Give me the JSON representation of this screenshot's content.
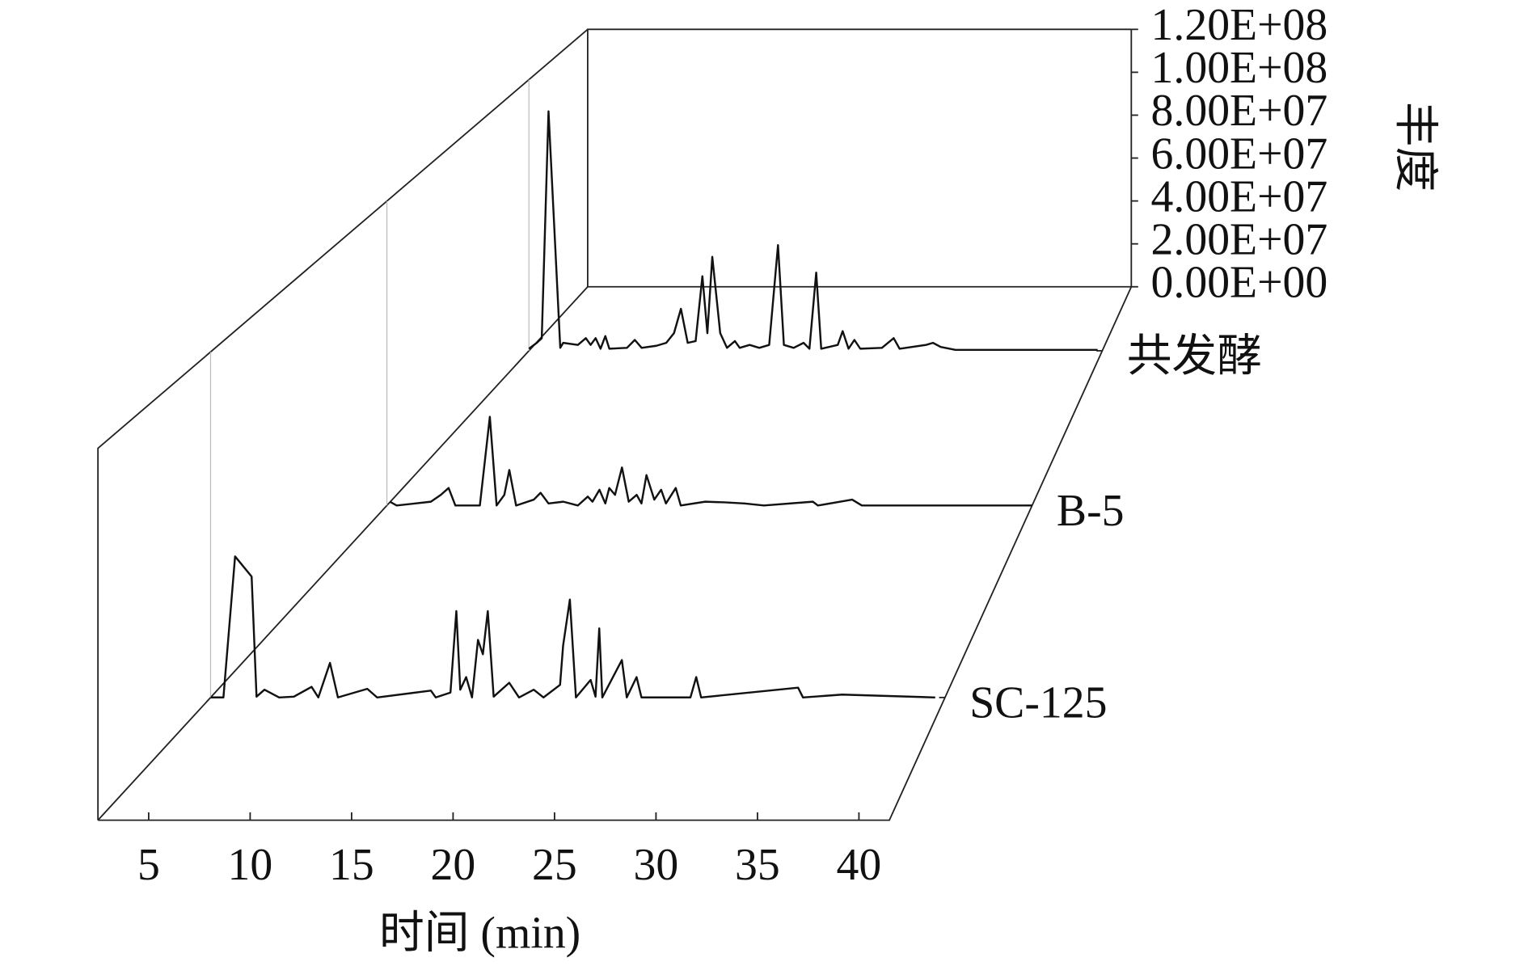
{
  "chart_data": {
    "type": "waterfall",
    "xlabel": "时间 (min)",
    "ylabel": "丰度",
    "xlim": [
      2.5,
      41.5
    ],
    "xticks": [
      5,
      10,
      15,
      20,
      25,
      30,
      35,
      40
    ],
    "ylim": [
      0,
      120000000
    ],
    "yticks": [
      {
        "value": 0,
        "label": "0.00E+00"
      },
      {
        "value": 20000000,
        "label": "2.00E+07"
      },
      {
        "value": 40000000,
        "label": "4.00E+07"
      },
      {
        "value": 60000000,
        "label": "6.00E+07"
      },
      {
        "value": 80000000,
        "label": "8.00E+07"
      },
      {
        "value": 100000000,
        "label": "1.00E+08"
      },
      {
        "value": 120000000,
        "label": "1.20E+08"
      }
    ],
    "series": [
      {
        "name": "SC-125",
        "color": "#111111",
        "x": [
          2.5,
          3.18,
          3.8,
          4.68,
          4.94,
          5.36,
          6.14,
          6.92,
          7.86,
          8.22,
          8.84,
          9.26,
          10.82,
          11.34,
          14.2,
          14.46,
          15.24,
          15.55,
          15.76,
          16.07,
          16.38,
          16.7,
          16.96,
          17.22,
          17.53,
          18.36,
          18.88,
          19.66,
          20.18,
          21.06,
          21.22,
          21.58,
          21.9,
          22.68,
          22.94,
          23.14,
          23.3,
          24.34,
          24.6,
          25.12,
          25.38,
          27.98,
          28.29,
          28.55,
          33.7,
          33.96,
          36.04,
          40.98
        ],
        "values": [
          0,
          0,
          49000000,
          42000000,
          300000,
          2700000,
          0,
          300000,
          3700000,
          0,
          12000000,
          0,
          3000000,
          0,
          2400000,
          0,
          1700000,
          30000000,
          2700000,
          7100000,
          0,
          20000000,
          15000000,
          30000000,
          300000,
          5100000,
          0,
          2700000,
          0,
          4400000,
          18000000,
          34000000,
          0,
          6100000,
          300000,
          24000000,
          0,
          13000000,
          0,
          7100000,
          0,
          0,
          7100000,
          0,
          3400000,
          0,
          1000000,
          0
        ]
      },
      {
        "name": "B-5",
        "color": "#111111",
        "x": [
          2.68,
          3.09,
          5.16,
          5.76,
          6.23,
          6.64,
          8.12,
          8.72,
          9.13,
          9.6,
          9.9,
          10.31,
          11.38,
          11.79,
          12.27,
          13.16,
          14.04,
          14.64,
          14.93,
          15.35,
          15.7,
          15.94,
          16.29,
          16.71,
          17.12,
          17.6,
          17.89,
          18.19,
          18.66,
          19.08,
          19.37,
          19.96,
          20.26,
          21.74,
          22.92,
          24.11,
          25.29,
          28.25,
          28.55,
          30.62,
          31.21,
          41.5
        ],
        "values": [
          1500000,
          0,
          1500000,
          4200000,
          6900000,
          0,
          0,
          35000000,
          0,
          4200000,
          14000000,
          0,
          2300000,
          5000000,
          800000,
          1500000,
          0,
          3500000,
          1500000,
          6200000,
          800000,
          6900000,
          4200000,
          15000000,
          1500000,
          4200000,
          800000,
          12000000,
          2300000,
          6200000,
          800000,
          6900000,
          0,
          1500000,
          1200000,
          800000,
          0,
          1500000,
          0,
          2300000,
          0,
          0
        ]
      },
      {
        "name": "共发酵",
        "color": "#111111",
        "x": [
          2.5,
          3.03,
          3.37,
          3.83,
          4.63,
          4.83,
          5.83,
          6.37,
          6.7,
          7.04,
          7.37,
          7.7,
          7.97,
          9.17,
          9.7,
          10.17,
          11.17,
          11.84,
          12.37,
          12.84,
          13.3,
          13.84,
          14.3,
          14.64,
          14.97,
          15.51,
          15.97,
          16.51,
          16.84,
          17.51,
          18.17,
          18.84,
          19.44,
          19.84,
          20.51,
          21.18,
          21.58,
          22.04,
          22.38,
          23.51,
          23.84,
          24.24,
          24.64,
          25.04,
          26.51,
          27.31,
          27.71,
          29.51,
          29.98,
          30.51,
          31.51,
          41.18
        ],
        "values": [
          900000,
          3500000,
          5600000,
          106000000,
          1300000,
          3500000,
          2600000,
          5600000,
          2600000,
          5600000,
          900000,
          6500000,
          900000,
          1300000,
          4800000,
          1300000,
          2200000,
          3500000,
          7800000,
          18600000,
          3500000,
          4300000,
          33000000,
          7800000,
          41600000,
          7800000,
          1300000,
          4300000,
          1300000,
          2600000,
          1300000,
          2600000,
          46800000,
          2600000,
          1300000,
          3500000,
          900000,
          34600000,
          900000,
          2600000,
          8700000,
          900000,
          4800000,
          900000,
          1300000,
          5600000,
          900000,
          2600000,
          3500000,
          1700000,
          400000,
          400000
        ]
      }
    ]
  }
}
